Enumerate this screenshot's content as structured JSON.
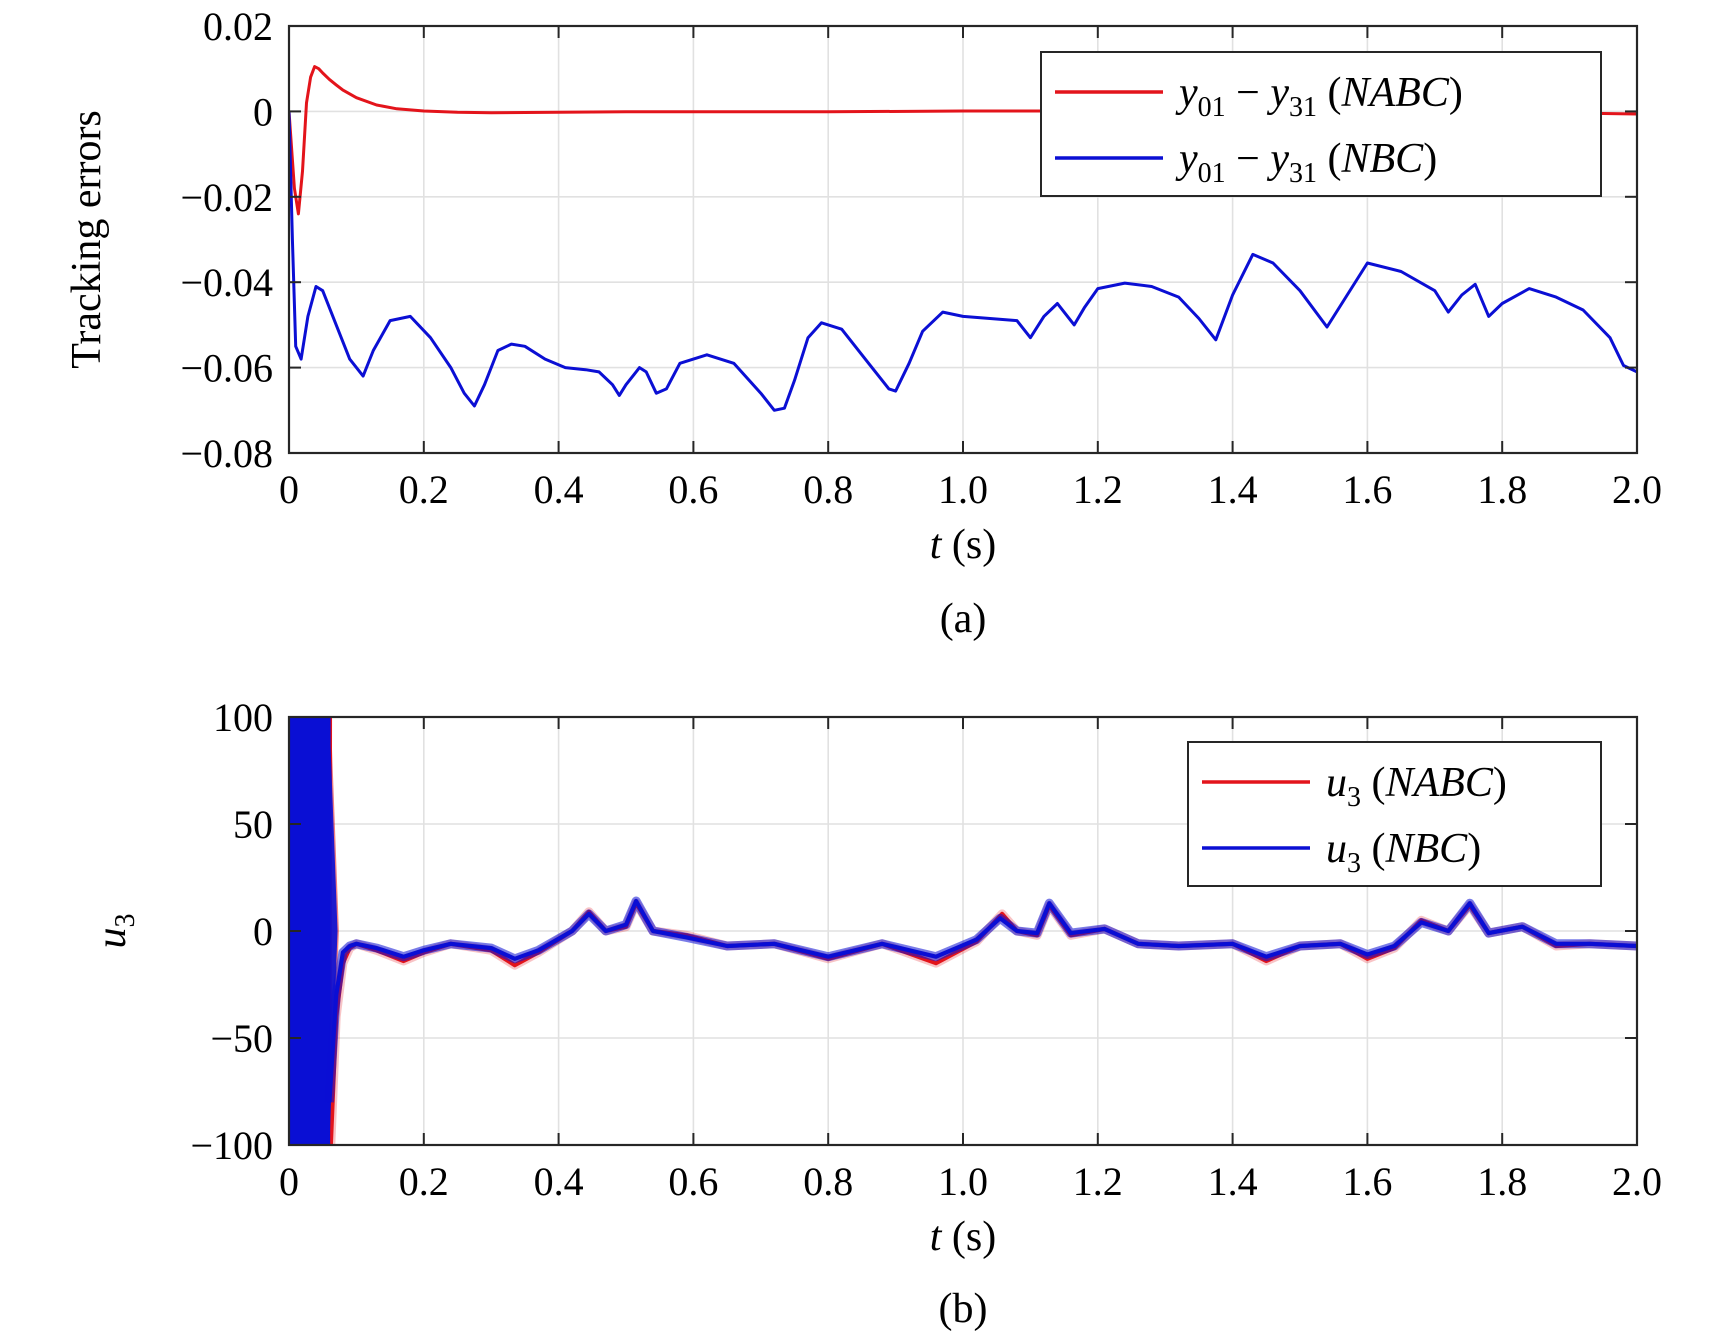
{
  "chart_data": [
    {
      "type": "line",
      "panel": "a",
      "caption": "(a)",
      "xlabel_var": "t",
      "xlabel_unit": " (s)",
      "ylabel": "Tracking errors",
      "xlim": [
        0,
        2
      ],
      "ylim": [
        -0.08,
        0.02
      ],
      "xticks": [
        0,
        0.2,
        0.4,
        0.6,
        0.8,
        1.0,
        1.2,
        1.4,
        1.6,
        1.8,
        2.0
      ],
      "xtick_labels": [
        "0",
        "0.2",
        "0.4",
        "0.6",
        "0.8",
        "1.0",
        "1.2",
        "1.4",
        "1.6",
        "1.8",
        "2.0"
      ],
      "yticks": [
        0.02,
        0,
        -0.02,
        -0.04,
        -0.06,
        -0.08
      ],
      "ytick_labels": [
        "0.02",
        "0",
        "−0.02",
        "−0.04",
        "−0.06",
        "−0.08"
      ],
      "grid": true,
      "legend_position": "top-right",
      "series": [
        {
          "name": "y01 − y31 (NABC)",
          "legend": {
            "v1": "y",
            "s1": "01",
            "op": " − ",
            "v2": "y",
            "s2": "31",
            "pre": " (",
            "tag": "NABC",
            "post": ")"
          },
          "color": "#e3141b",
          "x": [
            0,
            0.008,
            0.014,
            0.02,
            0.026,
            0.032,
            0.038,
            0.044,
            0.05,
            0.06,
            0.07,
            0.08,
            0.1,
            0.13,
            0.16,
            0.2,
            0.25,
            0.3,
            0.4,
            0.5,
            0.6,
            0.8,
            1.0,
            1.2,
            1.4,
            1.6,
            1.8,
            1.9,
            1.95,
            2.0
          ],
          "y": [
            0,
            -0.018,
            -0.024,
            -0.014,
            0.002,
            0.008,
            0.0105,
            0.01,
            0.009,
            0.0075,
            0.0062,
            0.005,
            0.0032,
            0.0015,
            0.0006,
            0.0001,
            -0.0002,
            -0.0003,
            -0.0002,
            -0.0001,
            -0.0001,
            -0.0001,
            0.0001,
            0.0001,
            0.0001,
            0.0001,
            0.0,
            -0.0003,
            -0.0005,
            -0.0006
          ]
        },
        {
          "name": "y01 − y31 (NBC)",
          "legend": {
            "v1": "y",
            "s1": "01",
            "op": " − ",
            "v2": "y",
            "s2": "31",
            "pre": " (",
            "tag": "NBC",
            "post": ")"
          },
          "color": "#0b0fd4",
          "x": [
            0,
            0.005,
            0.01,
            0.018,
            0.028,
            0.04,
            0.05,
            0.07,
            0.09,
            0.11,
            0.125,
            0.15,
            0.18,
            0.21,
            0.24,
            0.26,
            0.275,
            0.29,
            0.31,
            0.33,
            0.35,
            0.38,
            0.41,
            0.44,
            0.46,
            0.48,
            0.49,
            0.5,
            0.52,
            0.53,
            0.545,
            0.56,
            0.58,
            0.62,
            0.66,
            0.7,
            0.72,
            0.735,
            0.75,
            0.77,
            0.79,
            0.82,
            0.86,
            0.89,
            0.9,
            0.92,
            0.94,
            0.97,
            1.0,
            1.04,
            1.08,
            1.1,
            1.12,
            1.14,
            1.15,
            1.165,
            1.18,
            1.2,
            1.24,
            1.28,
            1.32,
            1.35,
            1.375,
            1.4,
            1.43,
            1.46,
            1.5,
            1.54,
            1.57,
            1.6,
            1.65,
            1.7,
            1.72,
            1.74,
            1.76,
            1.78,
            1.8,
            1.84,
            1.88,
            1.92,
            1.96,
            1.98,
            2.0
          ],
          "y": [
            0,
            -0.03,
            -0.055,
            -0.058,
            -0.048,
            -0.041,
            -0.042,
            -0.05,
            -0.058,
            -0.062,
            -0.056,
            -0.049,
            -0.048,
            -0.053,
            -0.06,
            -0.066,
            -0.069,
            -0.064,
            -0.056,
            -0.0545,
            -0.055,
            -0.058,
            -0.06,
            -0.0605,
            -0.061,
            -0.064,
            -0.0665,
            -0.064,
            -0.06,
            -0.061,
            -0.066,
            -0.065,
            -0.059,
            -0.057,
            -0.059,
            -0.066,
            -0.07,
            -0.0695,
            -0.063,
            -0.053,
            -0.0495,
            -0.051,
            -0.059,
            -0.065,
            -0.0655,
            -0.059,
            -0.0515,
            -0.047,
            -0.048,
            -0.0485,
            -0.049,
            -0.053,
            -0.048,
            -0.045,
            -0.047,
            -0.05,
            -0.046,
            -0.0415,
            -0.0402,
            -0.041,
            -0.0435,
            -0.0485,
            -0.0535,
            -0.043,
            -0.0335,
            -0.0355,
            -0.042,
            -0.0505,
            -0.043,
            -0.0355,
            -0.0375,
            -0.042,
            -0.047,
            -0.043,
            -0.0405,
            -0.048,
            -0.045,
            -0.0415,
            -0.0435,
            -0.0465,
            -0.053,
            -0.0595,
            -0.061
          ]
        }
      ]
    },
    {
      "type": "line",
      "panel": "b",
      "caption": "(b)",
      "xlabel_var": "t",
      "xlabel_unit": " (s)",
      "ylabel_var": "u",
      "ylabel_sub": "3",
      "xlim": [
        0,
        2
      ],
      "ylim": [
        -100,
        100
      ],
      "xticks": [
        0,
        0.2,
        0.4,
        0.6,
        0.8,
        1.0,
        1.2,
        1.4,
        1.6,
        1.8,
        2.0
      ],
      "xtick_labels": [
        "0",
        "0.2",
        "0.4",
        "0.6",
        "0.8",
        "1.0",
        "1.2",
        "1.4",
        "1.6",
        "1.8",
        "2.0"
      ],
      "yticks": [
        100,
        50,
        0,
        -50,
        -100
      ],
      "ytick_labels": [
        "100",
        "50",
        "0",
        "−50",
        "−100"
      ],
      "grid": true,
      "legend_position": "top-right",
      "series": [
        {
          "name": "u3 (NABC)",
          "legend": {
            "v1": "u",
            "s1": "3",
            "pre": " (",
            "tag": "NABC",
            "post": ")"
          },
          "color": "#e3141b",
          "oscillating_start": {
            "x0": 0,
            "x1": 0.062,
            "amplitude": 100
          },
          "x": [
            0.062,
            0.07,
            0.08,
            0.09,
            0.1,
            0.13,
            0.17,
            0.2,
            0.24,
            0.3,
            0.335,
            0.37,
            0.42,
            0.445,
            0.47,
            0.5,
            0.515,
            0.54,
            0.59,
            0.65,
            0.72,
            0.8,
            0.88,
            0.96,
            1.02,
            1.058,
            1.08,
            1.11,
            1.128,
            1.16,
            1.21,
            1.26,
            1.32,
            1.4,
            1.45,
            1.5,
            1.56,
            1.6,
            1.64,
            1.68,
            1.72,
            1.752,
            1.78,
            1.83,
            1.88,
            1.93,
            2.0
          ],
          "y": [
            -100,
            -40,
            -15,
            -8,
            -6,
            -9,
            -14,
            -10,
            -6,
            -9,
            -16,
            -10,
            0,
            9,
            0,
            2,
            13,
            0,
            -2,
            -7,
            -6,
            -13,
            -6,
            -15,
            -5,
            8,
            0,
            -2,
            12,
            -2,
            1,
            -6,
            -7,
            -6,
            -14,
            -7,
            -6,
            -13,
            -8,
            5,
            0,
            12,
            -1,
            2,
            -7,
            -6,
            -7
          ]
        },
        {
          "name": "u3 (NBC)",
          "legend": {
            "v1": "u",
            "s1": "3",
            "pre": " (",
            "tag": "NBC",
            "post": ")"
          },
          "color": "#0b0fd4",
          "oscillating_start": {
            "x0": 0,
            "x1": 0.06,
            "amplitude": 100
          },
          "x": [
            0.06,
            0.07,
            0.08,
            0.09,
            0.1,
            0.13,
            0.17,
            0.2,
            0.24,
            0.3,
            0.335,
            0.37,
            0.42,
            0.445,
            0.47,
            0.5,
            0.515,
            0.54,
            0.59,
            0.65,
            0.72,
            0.8,
            0.88,
            0.96,
            1.02,
            1.055,
            1.08,
            1.11,
            1.128,
            1.16,
            1.21,
            1.26,
            1.32,
            1.4,
            1.45,
            1.5,
            1.56,
            1.6,
            1.64,
            1.68,
            1.72,
            1.752,
            1.78,
            1.83,
            1.88,
            1.93,
            2.0
          ],
          "y": [
            -80,
            -30,
            -10,
            -7,
            -6,
            -8,
            -12,
            -9,
            -6,
            -8,
            -13,
            -9,
            0,
            8,
            0,
            3,
            14,
            0,
            -3,
            -7,
            -6,
            -12,
            -6,
            -12,
            -4,
            6,
            0,
            -1,
            13,
            -1,
            1,
            -6,
            -7,
            -6,
            -12,
            -7,
            -6,
            -11,
            -7,
            4,
            0,
            13,
            -1,
            2,
            -6,
            -6,
            -7
          ]
        }
      ]
    }
  ]
}
